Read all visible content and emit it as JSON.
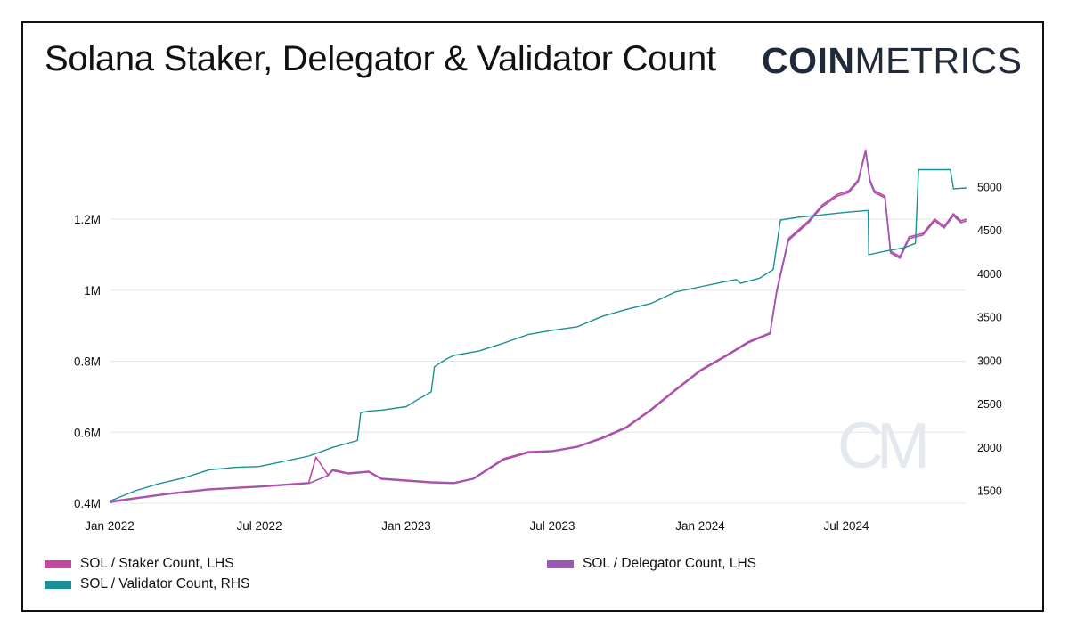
{
  "title": "Solana Staker, Delegator & Validator Count",
  "logo": {
    "bold": "COIN",
    "light": "METRICS"
  },
  "colors": {
    "staker": "#c2479f",
    "delegator": "#9b59b6",
    "validator": "#1b8f95",
    "grid": "#e6e6e6"
  },
  "chart_data": {
    "type": "line",
    "title": "Solana Staker, Delegator & Validator Count",
    "x_ticks": [
      "Jan 2022",
      "Jul 2022",
      "Jan 2023",
      "Jul 2023",
      "Jan 2024",
      "Jul 2024"
    ],
    "y_left": {
      "min": 0.4,
      "max": 1.4,
      "unit": "M",
      "ticks": [
        "0.4M",
        "0.6M",
        "0.8M",
        "1M",
        "1.2M"
      ]
    },
    "y_right": {
      "min": 1400,
      "max": 5400,
      "ticks": [
        "1500",
        "2000",
        "2500",
        "3000",
        "3500",
        "4000",
        "4500",
        "5000"
      ]
    },
    "grid": "horizontal",
    "legend_position": "bottom",
    "series": [
      {
        "name": "SOL / Staker Count, LHS",
        "axis": "left",
        "color": "staker",
        "points": [
          [
            "2022-01-01",
            0.405
          ],
          [
            "2022-02-01",
            0.415
          ],
          [
            "2022-03-15",
            0.428
          ],
          [
            "2022-05-01",
            0.44
          ],
          [
            "2022-07-01",
            0.448
          ],
          [
            "2022-09-01",
            0.458
          ],
          [
            "2022-09-10",
            0.53
          ],
          [
            "2022-09-25",
            0.48
          ],
          [
            "2022-10-01",
            0.495
          ],
          [
            "2022-10-20",
            0.485
          ],
          [
            "2022-11-15",
            0.49
          ],
          [
            "2022-12-01",
            0.47
          ],
          [
            "2023-01-01",
            0.465
          ],
          [
            "2023-02-01",
            0.46
          ],
          [
            "2023-03-01",
            0.458
          ],
          [
            "2023-03-25",
            0.47
          ],
          [
            "2023-05-01",
            0.525
          ],
          [
            "2023-06-01",
            0.545
          ],
          [
            "2023-07-01",
            0.548
          ],
          [
            "2023-08-01",
            0.56
          ],
          [
            "2023-09-01",
            0.585
          ],
          [
            "2023-10-01",
            0.615
          ],
          [
            "2023-11-01",
            0.665
          ],
          [
            "2023-12-01",
            0.72
          ],
          [
            "2024-01-01",
            0.775
          ],
          [
            "2024-02-01",
            0.815
          ],
          [
            "2024-03-01",
            0.855
          ],
          [
            "2024-03-28",
            0.88
          ],
          [
            "2024-04-05",
            0.995
          ],
          [
            "2024-04-20",
            1.145
          ],
          [
            "2024-05-15",
            1.195
          ],
          [
            "2024-06-01",
            1.24
          ],
          [
            "2024-06-20",
            1.27
          ],
          [
            "2024-07-05",
            1.28
          ],
          [
            "2024-07-20",
            1.31
          ],
          [
            "2024-08-01",
            1.395
          ],
          [
            "2024-08-08",
            1.31
          ],
          [
            "2024-08-15",
            1.28
          ],
          [
            "2024-09-01",
            1.265
          ],
          [
            "2024-09-10",
            1.11
          ],
          [
            "2024-09-25",
            1.095
          ],
          [
            "2024-10-10",
            1.15
          ],
          [
            "2024-11-01",
            1.16
          ],
          [
            "2024-11-20",
            1.2
          ],
          [
            "2024-12-05",
            1.18
          ],
          [
            "2024-12-20",
            1.215
          ],
          [
            "2025-01-01",
            1.195
          ],
          [
            "2025-01-10",
            1.2
          ]
        ]
      },
      {
        "name": "SOL / Delegator Count, LHS",
        "axis": "left",
        "color": "delegator",
        "points": [
          [
            "2022-01-01",
            0.402
          ],
          [
            "2022-02-01",
            0.413
          ],
          [
            "2022-03-15",
            0.426
          ],
          [
            "2022-05-01",
            0.438
          ],
          [
            "2022-07-01",
            0.446
          ],
          [
            "2022-09-01",
            0.456
          ],
          [
            "2022-09-25",
            0.478
          ],
          [
            "2022-10-01",
            0.492
          ],
          [
            "2022-10-20",
            0.483
          ],
          [
            "2022-11-15",
            0.488
          ],
          [
            "2022-12-01",
            0.468
          ],
          [
            "2023-01-01",
            0.463
          ],
          [
            "2023-02-01",
            0.458
          ],
          [
            "2023-03-01",
            0.456
          ],
          [
            "2023-03-25",
            0.468
          ],
          [
            "2023-05-01",
            0.522
          ],
          [
            "2023-06-01",
            0.542
          ],
          [
            "2023-07-01",
            0.546
          ],
          [
            "2023-08-01",
            0.558
          ],
          [
            "2023-09-01",
            0.582
          ],
          [
            "2023-10-01",
            0.612
          ],
          [
            "2023-11-01",
            0.662
          ],
          [
            "2023-12-01",
            0.717
          ],
          [
            "2024-01-01",
            0.772
          ],
          [
            "2024-02-01",
            0.812
          ],
          [
            "2024-03-01",
            0.852
          ],
          [
            "2024-03-28",
            0.877
          ],
          [
            "2024-04-05",
            0.99
          ],
          [
            "2024-04-20",
            1.14
          ],
          [
            "2024-05-15",
            1.19
          ],
          [
            "2024-06-01",
            1.235
          ],
          [
            "2024-06-20",
            1.265
          ],
          [
            "2024-07-05",
            1.275
          ],
          [
            "2024-07-20",
            1.305
          ],
          [
            "2024-08-01",
            1.39
          ],
          [
            "2024-08-08",
            1.305
          ],
          [
            "2024-08-15",
            1.275
          ],
          [
            "2024-09-01",
            1.26
          ],
          [
            "2024-09-10",
            1.105
          ],
          [
            "2024-09-25",
            1.09
          ],
          [
            "2024-10-10",
            1.145
          ],
          [
            "2024-11-01",
            1.155
          ],
          [
            "2024-11-20",
            1.195
          ],
          [
            "2024-12-05",
            1.175
          ],
          [
            "2024-12-20",
            1.21
          ],
          [
            "2025-01-01",
            1.19
          ],
          [
            "2025-01-10",
            1.195
          ]
        ]
      },
      {
        "name": "SOL / Validator Count, RHS",
        "axis": "right",
        "color": "validator",
        "points": [
          [
            "2022-01-01",
            1380
          ],
          [
            "2022-02-01",
            1500
          ],
          [
            "2022-03-01",
            1580
          ],
          [
            "2022-04-01",
            1650
          ],
          [
            "2022-05-01",
            1740
          ],
          [
            "2022-06-01",
            1770
          ],
          [
            "2022-07-01",
            1780
          ],
          [
            "2022-08-01",
            1840
          ],
          [
            "2022-09-01",
            1900
          ],
          [
            "2022-10-01",
            2000
          ],
          [
            "2022-11-01",
            2080
          ],
          [
            "2022-11-05",
            2400
          ],
          [
            "2022-11-15",
            2420
          ],
          [
            "2022-12-01",
            2430
          ],
          [
            "2023-01-01",
            2470
          ],
          [
            "2023-01-15",
            2550
          ],
          [
            "2023-02-01",
            2640
          ],
          [
            "2023-02-05",
            2930
          ],
          [
            "2023-02-20",
            3020
          ],
          [
            "2023-03-01",
            3060
          ],
          [
            "2023-04-01",
            3110
          ],
          [
            "2023-05-01",
            3200
          ],
          [
            "2023-06-01",
            3300
          ],
          [
            "2023-07-01",
            3350
          ],
          [
            "2023-08-01",
            3390
          ],
          [
            "2023-09-01",
            3510
          ],
          [
            "2023-10-01",
            3590
          ],
          [
            "2023-11-01",
            3660
          ],
          [
            "2023-12-01",
            3790
          ],
          [
            "2024-01-01",
            3850
          ],
          [
            "2024-02-01",
            3910
          ],
          [
            "2024-02-15",
            3935
          ],
          [
            "2024-02-20",
            3890
          ],
          [
            "2024-03-15",
            3950
          ],
          [
            "2024-04-01",
            4050
          ],
          [
            "2024-04-10",
            4620
          ],
          [
            "2024-05-01",
            4650
          ],
          [
            "2024-06-01",
            4680
          ],
          [
            "2024-07-01",
            4710
          ],
          [
            "2024-08-05",
            4730
          ],
          [
            "2024-08-06",
            4220
          ],
          [
            "2024-09-01",
            4260
          ],
          [
            "2024-10-01",
            4300
          ],
          [
            "2024-10-20",
            4350
          ],
          [
            "2024-10-25",
            5200
          ],
          [
            "2024-12-15",
            5200
          ],
          [
            "2024-12-20",
            4980
          ],
          [
            "2025-01-10",
            4990
          ]
        ]
      }
    ]
  },
  "legend": [
    {
      "label": "SOL / Staker Count, LHS",
      "color": "staker"
    },
    {
      "label": "SOL / Delegator Count, LHS",
      "color": "delegator"
    },
    {
      "label": "SOL / Validator Count, RHS",
      "color": "validator"
    }
  ]
}
